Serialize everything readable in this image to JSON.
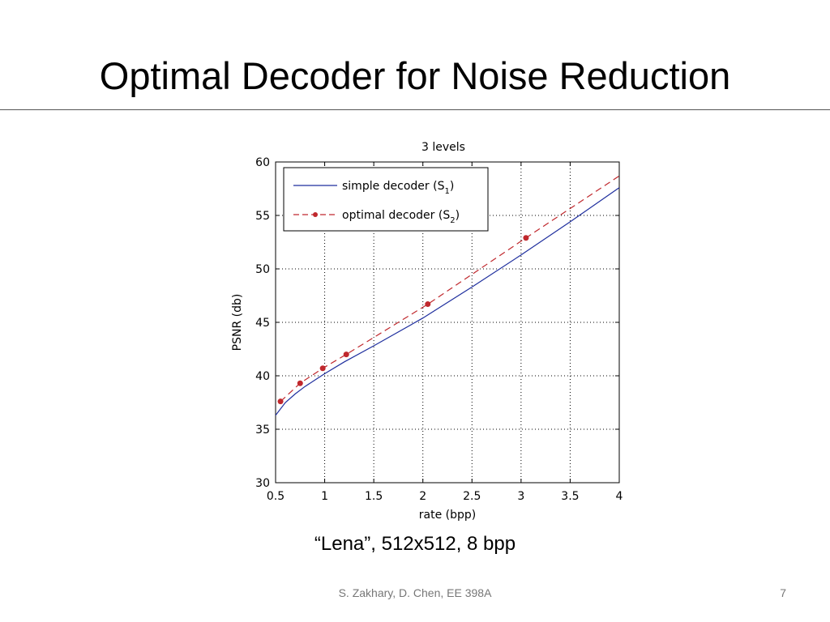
{
  "slide": {
    "title": "Optimal Decoder for Noise Reduction",
    "caption": "“Lena”, 512x512, 8 bpp",
    "footer_author": "S. Zakhary, D. Chen, EE 398A",
    "page_number": "7"
  },
  "chart_data": {
    "type": "line",
    "title": "3 levels",
    "xlabel": "rate (bpp)",
    "ylabel": "PSNR (db)",
    "xlim": [
      0.5,
      4
    ],
    "ylim": [
      30,
      60
    ],
    "x_ticks": [
      0.5,
      1,
      1.5,
      2,
      2.5,
      3,
      3.5,
      4
    ],
    "x_tick_labels": [
      "0.5",
      "1",
      "1.5",
      "2",
      "2.5",
      "3",
      "3.5",
      "4"
    ],
    "y_ticks": [
      30,
      35,
      40,
      45,
      50,
      55,
      60
    ],
    "y_tick_labels": [
      "30",
      "35",
      "40",
      "45",
      "50",
      "55",
      "60"
    ],
    "grid": true,
    "legend_position": "top-left",
    "series": [
      {
        "name": "simple decoder (S1)",
        "legend_main": "simple decoder (S",
        "legend_sub": "1",
        "legend_tail": ")",
        "color": "#1f2f9e",
        "style": "solid",
        "markers": false,
        "x": [
          0.5,
          0.6,
          0.7,
          0.8,
          0.9,
          1.0,
          1.2,
          1.5,
          2.0,
          2.5,
          3.0,
          3.5,
          4.0
        ],
        "y": [
          36.3,
          37.5,
          38.3,
          39.0,
          39.6,
          40.2,
          41.3,
          42.8,
          45.4,
          48.3,
          51.3,
          54.4,
          57.6
        ]
      },
      {
        "name": "optimal decoder (S2)",
        "legend_main": "optimal decoder (S",
        "legend_sub": "2",
        "legend_tail": ")",
        "color": "#c0282d",
        "style": "dashed",
        "markers": true,
        "x": [
          0.55,
          0.75,
          0.98,
          1.22,
          2.05,
          3.05,
          4.0
        ],
        "y": [
          37.6,
          39.3,
          40.7,
          42.0,
          46.7,
          52.9,
          58.7
        ],
        "marker_x": [
          0.55,
          0.75,
          0.98,
          1.22,
          2.05,
          3.05
        ],
        "marker_y": [
          37.6,
          39.3,
          40.7,
          42.0,
          46.7,
          52.9
        ]
      }
    ]
  }
}
